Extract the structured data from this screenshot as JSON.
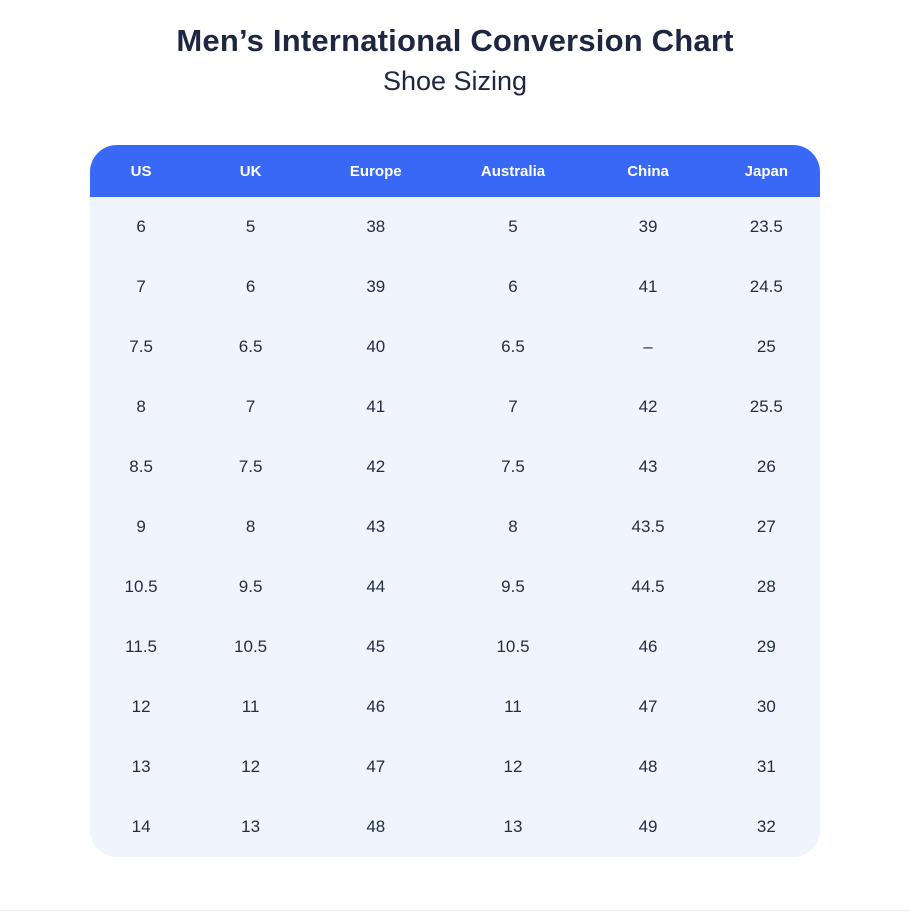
{
  "header": {
    "title": "Men’s International Conversion Chart",
    "subtitle": "Shoe Sizing"
  },
  "table": {
    "columns": [
      "US",
      "UK",
      "Europe",
      "Australia",
      "China",
      "Japan"
    ],
    "rows": [
      [
        "6",
        "5",
        "38",
        "5",
        "39",
        "23.5"
      ],
      [
        "7",
        "6",
        "39",
        "6",
        "41",
        "24.5"
      ],
      [
        "7.5",
        "6.5",
        "40",
        "6.5",
        "–",
        "25"
      ],
      [
        "8",
        "7",
        "41",
        "7",
        "42",
        "25.5"
      ],
      [
        "8.5",
        "7.5",
        "42",
        "7.5",
        "43",
        "26"
      ],
      [
        "9",
        "8",
        "43",
        "8",
        "43.5",
        "27"
      ],
      [
        "10.5",
        "9.5",
        "44",
        "9.5",
        "44.5",
        "28"
      ],
      [
        "11.5",
        "10.5",
        "45",
        "10.5",
        "46",
        "29"
      ],
      [
        "12",
        "11",
        "46",
        "11",
        "47",
        "30"
      ],
      [
        "13",
        "12",
        "47",
        "12",
        "48",
        "31"
      ],
      [
        "14",
        "13",
        "48",
        "13",
        "49",
        "32"
      ]
    ]
  },
  "chart_data": {
    "type": "table",
    "title": "Men’s International Conversion Chart",
    "subtitle": "Shoe Sizing",
    "columns": [
      "US",
      "UK",
      "Europe",
      "Australia",
      "China",
      "Japan"
    ],
    "rows": [
      [
        "6",
        "5",
        "38",
        "5",
        "39",
        "23.5"
      ],
      [
        "7",
        "6",
        "39",
        "6",
        "41",
        "24.5"
      ],
      [
        "7.5",
        "6.5",
        "40",
        "6.5",
        "–",
        "25"
      ],
      [
        "8",
        "7",
        "41",
        "7",
        "42",
        "25.5"
      ],
      [
        "8.5",
        "7.5",
        "42",
        "7.5",
        "43",
        "26"
      ],
      [
        "9",
        "8",
        "43",
        "8",
        "43.5",
        "27"
      ],
      [
        "10.5",
        "9.5",
        "44",
        "9.5",
        "44.5",
        "28"
      ],
      [
        "11.5",
        "10.5",
        "45",
        "10.5",
        "46",
        "29"
      ],
      [
        "12",
        "11",
        "46",
        "11",
        "47",
        "30"
      ],
      [
        "13",
        "12",
        "47",
        "12",
        "48",
        "31"
      ],
      [
        "14",
        "13",
        "48",
        "13",
        "49",
        "32"
      ]
    ]
  },
  "colors": {
    "header_bg": "#3a68f6",
    "panel_bg": "#f0f5fd",
    "header_text": "#ffffff",
    "cell_text": "#242e42",
    "title_text": "#1e2642",
    "divider": "#eaeaea"
  }
}
